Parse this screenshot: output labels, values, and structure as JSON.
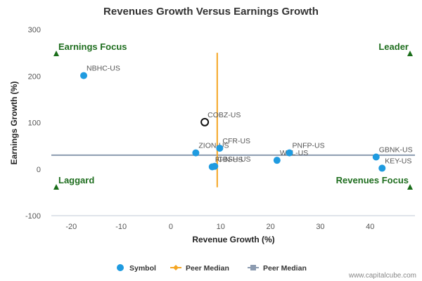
{
  "chart_data": {
    "type": "scatter",
    "title": "Revenues Growth Versus Earnings Growth",
    "xlabel": "Revenue Growth (%)",
    "ylabel": "Earnings Growth (%)",
    "xlim": [
      -24,
      49
    ],
    "ylim": [
      -100,
      300
    ],
    "x_ticks": [
      -20,
      -10,
      0,
      10,
      20,
      30,
      40
    ],
    "y_ticks": [
      -100,
      0,
      100,
      200,
      300
    ],
    "grid": false,
    "series": [
      {
        "name": "Symbol",
        "color": "#1f9be0",
        "points": [
          {
            "label": "NBHC-US",
            "x": -17.5,
            "y": 201
          },
          {
            "label": "ZION-US",
            "x": 5.0,
            "y": 35
          },
          {
            "label": "CFR-US",
            "x": 9.8,
            "y": 45
          },
          {
            "label": "FHN-US",
            "x": 8.3,
            "y": 5
          },
          {
            "label": "CBSH-US",
            "x": 8.8,
            "y": 6
          },
          {
            "label": "WAL-US",
            "x": 21.3,
            "y": 19
          },
          {
            "label": "PNFP-US",
            "x": 23.8,
            "y": 35
          },
          {
            "label": "GBNK-US",
            "x": 41.2,
            "y": 26
          },
          {
            "label": "KEY-US",
            "x": 42.4,
            "y": 2
          }
        ]
      }
    ],
    "highlight": {
      "label": "COBZ-US",
      "x": 6.8,
      "y": 101
    },
    "peer_median": {
      "name": "Peer Median",
      "revenue_growth_x": 9.3,
      "earnings_growth_y": 30,
      "vertical_color": "#f5a623",
      "horizontal_color": "#8c9bb0",
      "vertical_y_range": [
        -39,
        250
      ],
      "horizontal_x_range": [
        -24,
        49
      ]
    },
    "quadrants": {
      "top_left": "Earnings Focus",
      "top_right": "Leader",
      "bottom_left": "Laggard",
      "bottom_right": "Revenues Focus"
    },
    "legend": {
      "placement": "bottom",
      "items": [
        {
          "label": "Symbol",
          "marker": "circle",
          "color": "#1f9be0"
        },
        {
          "label": "Peer Median",
          "marker": "diamond-line",
          "color": "#f5a623"
        },
        {
          "label": "Peer Median",
          "marker": "square-line",
          "color": "#8c9bb0"
        }
      ]
    },
    "credit": "www.capitalcube.com",
    "quadrant_marker_color": "#1a6e1a"
  }
}
